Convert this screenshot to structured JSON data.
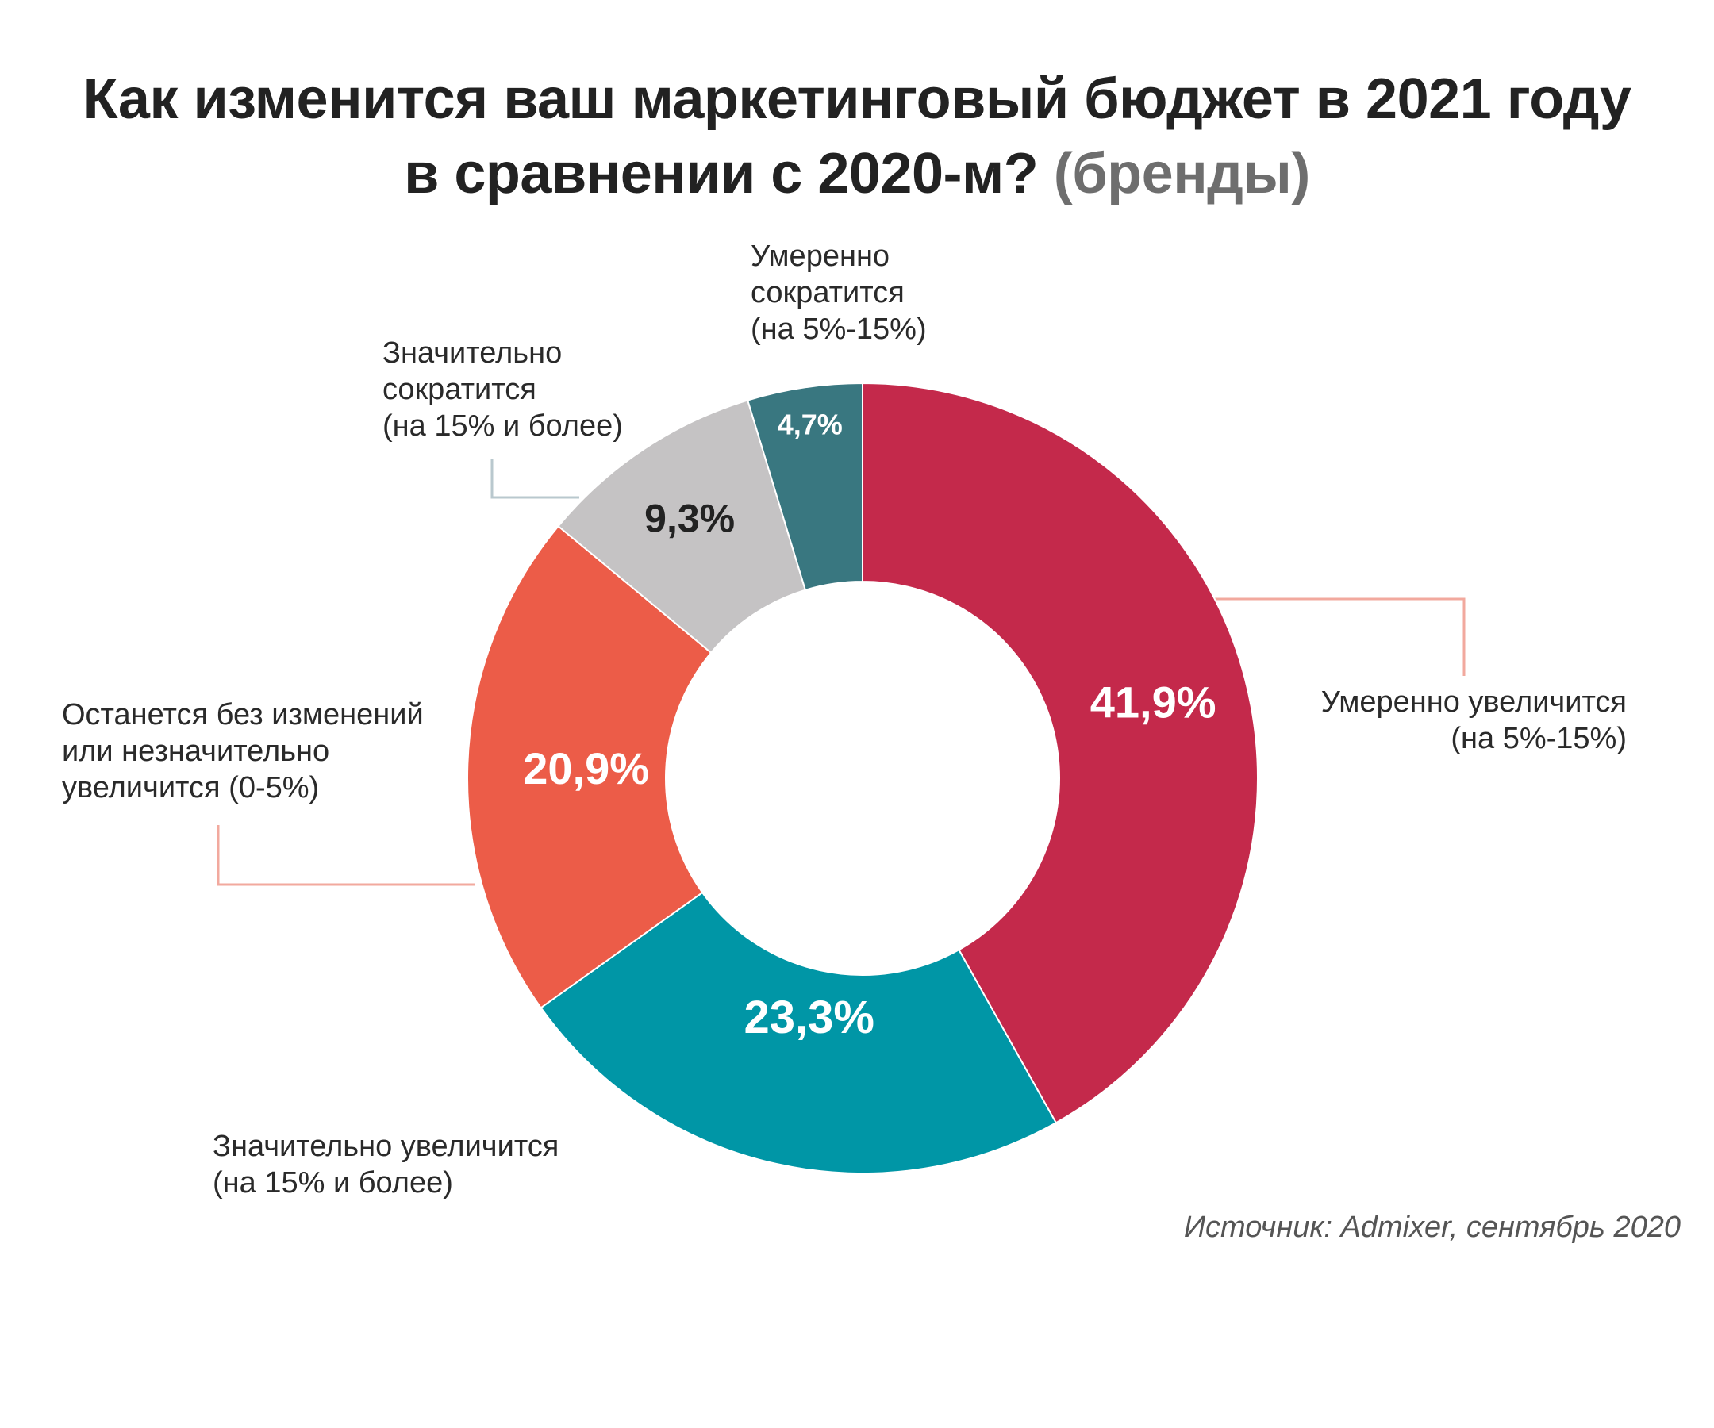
{
  "chart_data": {
    "type": "pie",
    "donut": true,
    "title_line1": "Как изменится ваш маркетинговый бюджет в 2021 году",
    "title_line2_main": "в сравнении с 2020-м?",
    "title_line2_muted": "(бренды)",
    "unit": "%",
    "slices": [
      {
        "value": 41.9,
        "value_label": "41,9%",
        "label_lines": [
          "Умеренно увеличится",
          "(на 5%-15%)"
        ],
        "color": "#C4294B",
        "label_color": "#ffffff"
      },
      {
        "value": 23.3,
        "value_label": "23,3%",
        "label_lines": [
          "Значительно увеличится",
          "(на 15% и более)"
        ],
        "color": "#0096A6",
        "label_color": "#ffffff"
      },
      {
        "value": 20.9,
        "value_label": "20,9%",
        "label_lines": [
          "Останется без изменений",
          "или незначительно",
          "увеличится (0-5%)"
        ],
        "color": "#EC5C48",
        "label_color": "#ffffff"
      },
      {
        "value": 9.3,
        "value_label": "9,3%",
        "label_lines": [
          "Значительно",
          "сократится",
          "(на 15% и более)"
        ],
        "color": "#C5C3C4",
        "label_color": "#222222"
      },
      {
        "value": 4.7,
        "value_label": "4,7%",
        "label_lines": [
          "Умеренно",
          "сократится",
          "(на 5%-15%)"
        ],
        "color": "#397780",
        "label_color": "#ffffff"
      }
    ],
    "source": "Источник: Admixer, сентябрь 2020"
  }
}
